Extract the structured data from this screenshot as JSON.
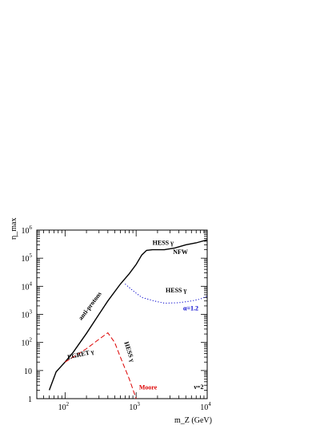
{
  "chart_data": {
    "type": "line",
    "xscale": "log",
    "yscale": "log",
    "xlim": [
      40,
      10000
    ],
    "ylim": [
      1,
      1000000
    ],
    "xlabel": "m_Z (GeV)",
    "ylabel": "η_max",
    "x_ticks": [
      {
        "label": "10",
        "exp": "2",
        "value": 100
      },
      {
        "label": "10",
        "exp": "3",
        "value": 1000
      },
      {
        "label": "10",
        "exp": "4",
        "value": 10000
      }
    ],
    "y_ticks": [
      {
        "label": "1",
        "exp": "",
        "value": 1
      },
      {
        "label": "10",
        "exp": "",
        "value": 10
      },
      {
        "label": "10",
        "exp": "2",
        "value": 100
      },
      {
        "label": "10",
        "exp": "3",
        "value": 1000
      },
      {
        "label": "10",
        "exp": "4",
        "value": 10000
      },
      {
        "label": "10",
        "exp": "5",
        "value": 100000
      },
      {
        "label": "10",
        "exp": "6",
        "value": 1000000
      }
    ],
    "series": [
      {
        "key": "antiprotons",
        "color": "#000000",
        "dash": "solid",
        "points": [
          [
            60,
            2
          ],
          [
            75,
            9
          ],
          [
            100,
            20
          ],
          [
            130,
            45
          ],
          [
            200,
            210
          ],
          [
            300,
            1000
          ],
          [
            400,
            3000
          ],
          [
            600,
            12000
          ],
          [
            800,
            28000
          ],
          [
            1000,
            60000
          ],
          [
            1200,
            130000
          ],
          [
            1400,
            190000
          ],
          [
            1700,
            200000
          ],
          [
            2500,
            200000
          ],
          [
            3500,
            230000
          ],
          [
            5000,
            300000
          ],
          [
            7000,
            350000
          ],
          [
            10000,
            450000
          ]
        ]
      },
      {
        "key": "hess_alpha",
        "color": "#0000cc",
        "dash": "dotted",
        "points": [
          [
            700,
            12000
          ],
          [
            900,
            7000
          ],
          [
            1200,
            4000
          ],
          [
            1800,
            3000
          ],
          [
            2500,
            2500
          ],
          [
            4000,
            2600
          ],
          [
            6000,
            3000
          ],
          [
            8000,
            3500
          ],
          [
            10000,
            4500
          ]
        ]
      },
      {
        "key": "egret_moore",
        "color": "#dd0000",
        "dash": "dashed",
        "points": [
          [
            100,
            20
          ],
          [
            200,
            60
          ],
          [
            300,
            130
          ],
          [
            400,
            220
          ],
          [
            500,
            100
          ],
          [
            600,
            30
          ],
          [
            800,
            5
          ],
          [
            1000,
            1
          ]
        ]
      }
    ],
    "annotations": [
      {
        "key": "anti",
        "text": "anti-protons",
        "x": 170,
        "y": 600,
        "color": "#000000",
        "rotate": -53
      },
      {
        "key": "hess-nfw",
        "text": "HESS γ",
        "x": 1700,
        "y": 300000,
        "color": "#000000",
        "rotate": 0
      },
      {
        "key": "nfw",
        "text": "NFW",
        "x": 3300,
        "y": 140000,
        "color": "#000000",
        "rotate": 0
      },
      {
        "key": "hess-alpha",
        "text": "HESS γ",
        "x": 2600,
        "y": 6000,
        "color": "#000000",
        "rotate": 0
      },
      {
        "key": "alpha",
        "text": "α=1.2",
        "x": 4600,
        "y": 1400,
        "color": "#0000cc",
        "rotate": 0
      },
      {
        "key": "egret",
        "text": "EGRET γ",
        "x": 110,
        "y": 25,
        "color": "#000000",
        "rotate": -13
      },
      {
        "key": "hess-moore",
        "text": "HESS γ",
        "x": 680,
        "y": 100,
        "color": "#000000",
        "rotate": 72
      },
      {
        "key": "moore",
        "text": "Moore",
        "x": 1100,
        "y": 2.1,
        "color": "#dd0000",
        "rotate": 0
      },
      {
        "key": "nu",
        "text": "ν=2",
        "x": 6500,
        "y": 2.2,
        "color": "#000000",
        "rotate": 0
      }
    ]
  }
}
